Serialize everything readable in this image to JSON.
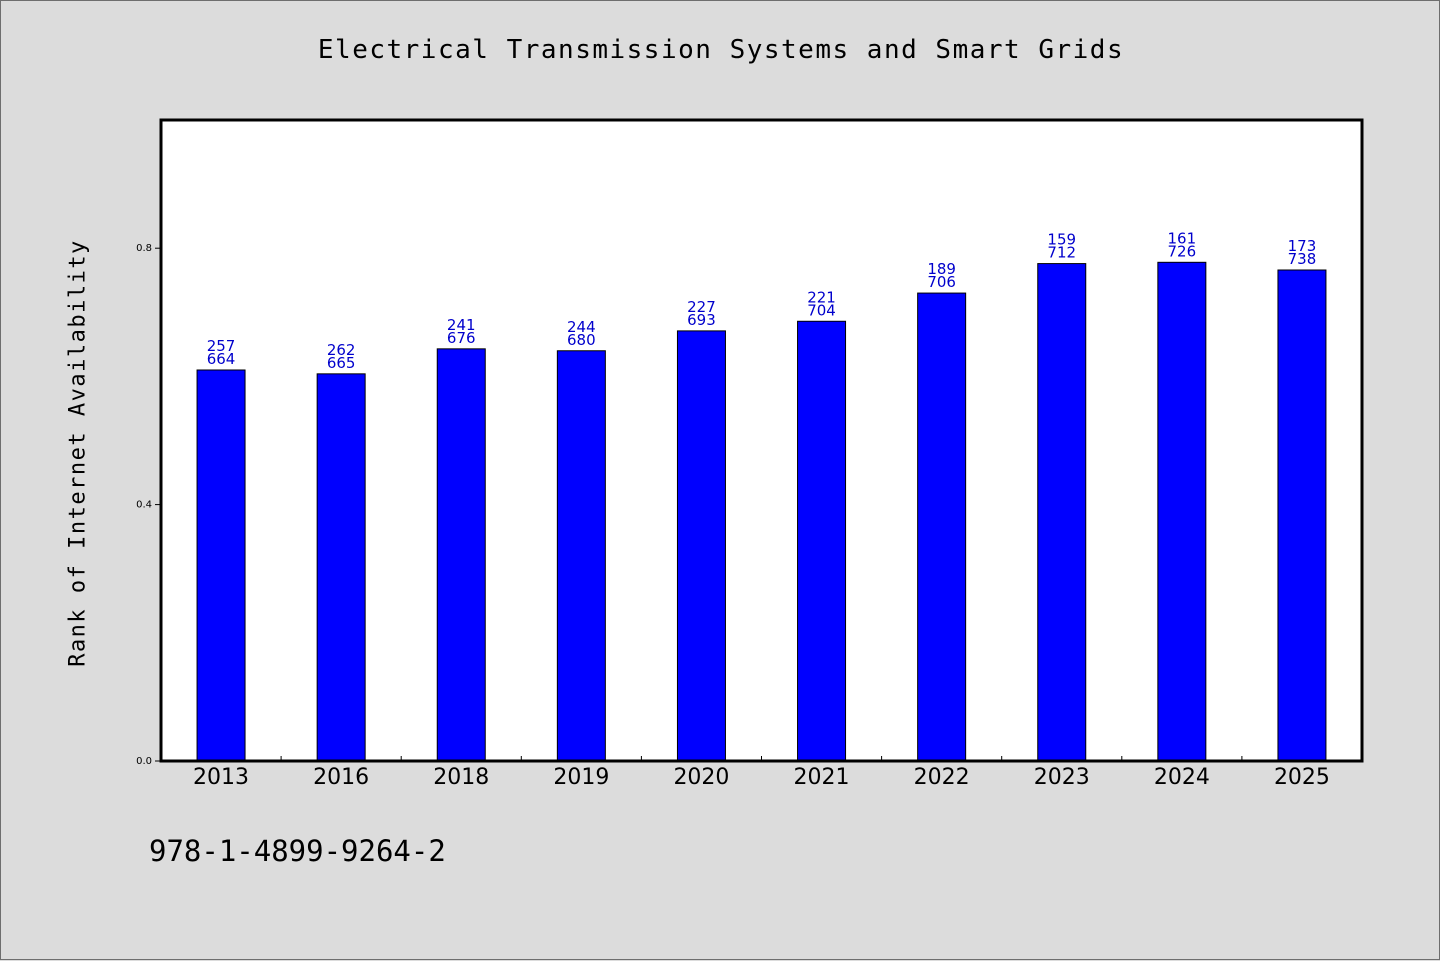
{
  "chart_data": {
    "type": "bar",
    "title": "Electrical Transmission Systems and Smart Grids",
    "xlabel": "",
    "ylabel": "Rank of Internet Availability",
    "categories": [
      "2013",
      "2016",
      "2018",
      "2019",
      "2020",
      "2021",
      "2022",
      "2023",
      "2024",
      "2025"
    ],
    "values": [
      0.61,
      0.604,
      0.643,
      0.64,
      0.671,
      0.686,
      0.73,
      0.776,
      0.778,
      0.766
    ],
    "bar_labels": [
      [
        "257",
        "664"
      ],
      [
        "262",
        "665"
      ],
      [
        "241",
        "676"
      ],
      [
        "244",
        "680"
      ],
      [
        "227",
        "693"
      ],
      [
        "221",
        "704"
      ],
      [
        "189",
        "706"
      ],
      [
        "159",
        "712"
      ],
      [
        "161",
        "726"
      ],
      [
        "173",
        "738"
      ]
    ],
    "yticks": [
      "0.0",
      "0.4",
      "0.8"
    ],
    "ytick_values": [
      0.0,
      0.4,
      0.8
    ],
    "ylim": [
      0,
      1.0
    ],
    "grid": false,
    "bar_color": "#0000ff",
    "label_color": "#0000cc"
  },
  "footer_text": "978-1-4899-9264-2",
  "colors": {
    "background": "#dcdcdc",
    "plot_background": "#ffffff"
  }
}
